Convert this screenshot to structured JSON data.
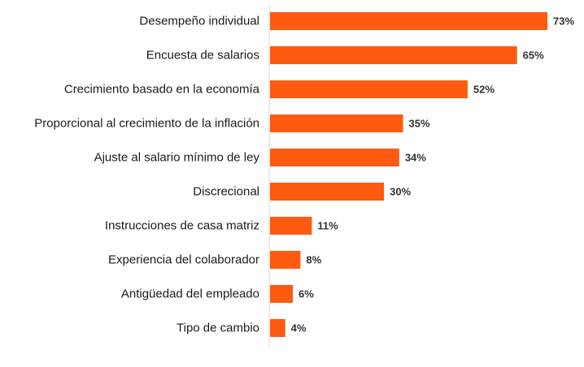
{
  "chart_data": {
    "type": "bar",
    "orientation": "horizontal",
    "categories": [
      "Desempeño individual",
      "Encuesta de salarios",
      "Crecimiento basado en la economía",
      "Proporcional al crecimiento de la inflación",
      "Ajuste al salario mínimo de ley",
      "Discrecional",
      "Instrucciones de casa matriz",
      "Experiencia del colaborador",
      "Antigüedad del empleado",
      "Tipo de cambio"
    ],
    "values": [
      73,
      65,
      52,
      35,
      34,
      30,
      11,
      8,
      6,
      4
    ],
    "value_labels": [
      "73%",
      "65%",
      "52%",
      "35%",
      "34%",
      "30%",
      "11%",
      "8%",
      "6%",
      "4%"
    ],
    "xlim": [
      0,
      73
    ],
    "grid": false,
    "legend": "none",
    "colors": {
      "bar": "#fe5a10",
      "axis": "#d9d9d9"
    }
  }
}
